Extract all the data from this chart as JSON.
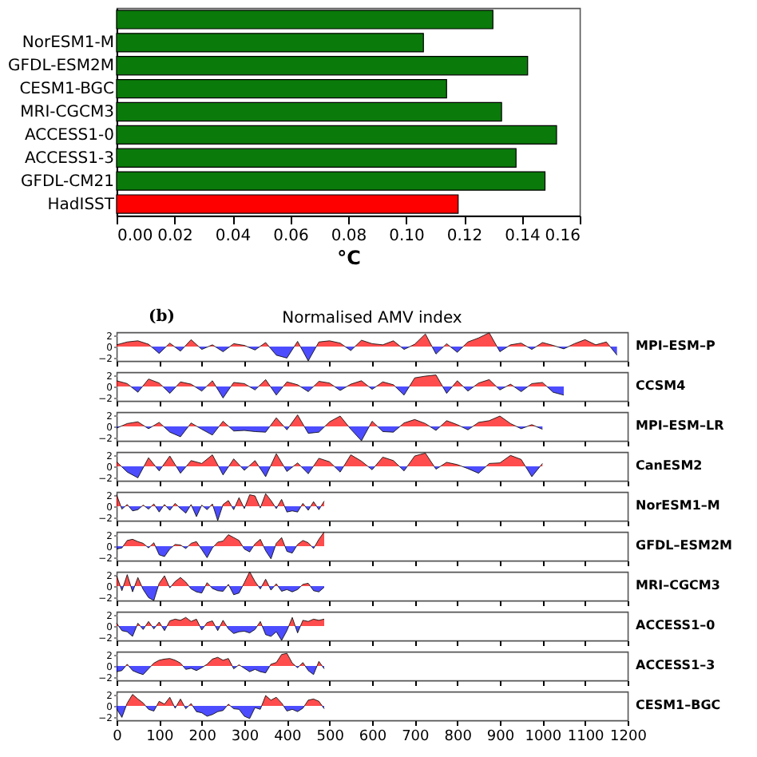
{
  "chart_data": [
    {
      "type": "bar",
      "orientation": "horizontal",
      "categories": [
        null,
        "NorESM1-M",
        "GFDL-ESM2M",
        "CESM1-BGC",
        "MRI-CGCM3",
        "ACCESS1-0",
        "ACCESS1-3",
        "GFDL-CM21",
        "HadISST"
      ],
      "values": [
        0.13,
        0.106,
        0.142,
        0.114,
        0.133,
        0.152,
        0.138,
        0.148,
        0.118
      ],
      "colors": [
        "#0a7a0a",
        "#0a7a0a",
        "#0a7a0a",
        "#0a7a0a",
        "#0a7a0a",
        "#0a7a0a",
        "#0a7a0a",
        "#0a7a0a",
        "#ff0000"
      ],
      "xlim": [
        0,
        0.16
      ],
      "xticks": [
        {
          "value": 0,
          "label": "0.00"
        },
        {
          "value": 0.02,
          "label": "0.02"
        },
        {
          "value": 0.04,
          "label": "0.04"
        },
        {
          "value": 0.06,
          "label": "0.06"
        },
        {
          "value": 0.08,
          "label": "0.08"
        },
        {
          "value": 0.1,
          "label": "0.10"
        },
        {
          "value": 0.12,
          "label": "0.12"
        },
        {
          "value": 0.14,
          "label": "0.14"
        },
        {
          "value": 0.16,
          "label": "0.16"
        }
      ],
      "xlabel": "°C",
      "grid": false
    },
    {
      "type": "area",
      "title": "Normalised AMV index",
      "annotations": [
        "(b)"
      ],
      "colors": [
        "#ff0000",
        "#0000ff"
      ],
      "xlim": [
        0,
        1200
      ],
      "xticks": [
        0,
        100,
        200,
        300,
        400,
        500,
        600,
        700,
        800,
        900,
        1000,
        1100,
        1200
      ],
      "ylim": [
        -2.5,
        2.5
      ],
      "yticks": [
        -2,
        0,
        2
      ],
      "tick_labels": "y",
      "series": [
        {
          "name": "MPI–ESM–P",
          "x": [
            0,
            25,
            50,
            75,
            100,
            125,
            150,
            175,
            200,
            225,
            250,
            275,
            300,
            325,
            350,
            375,
            400,
            425,
            450,
            475,
            500,
            525,
            550,
            575,
            600,
            625,
            650,
            675,
            700,
            725,
            750,
            775,
            800,
            825,
            850,
            875,
            900,
            925,
            950,
            975,
            1000,
            1025,
            1050,
            1075,
            1100,
            1125,
            1150,
            1175
          ],
          "values": [
            0.3,
            0.8,
            1.0,
            0.4,
            -1.2,
            0.6,
            -0.8,
            1.2,
            -0.5,
            0.3,
            -0.9,
            0.5,
            0.2,
            -0.6,
            0.7,
            -1.5,
            -2.0,
            0.9,
            -2.5,
            0.8,
            1.0,
            0.6,
            -0.7,
            1.1,
            0.5,
            0.3,
            1.0,
            -0.5,
            0.4,
            2.2,
            -1.3,
            0.5,
            -1.0,
            0.8,
            1.5,
            2.4,
            -0.9,
            0.3,
            0.6,
            -0.5,
            0.7,
            0.2,
            -0.4,
            0.5,
            1.2,
            0.3,
            0.8,
            -1.5
          ]
        }
      ]
    },
    {
      "type": "area",
      "colors": [
        "#ff0000",
        "#0000ff"
      ],
      "xlim": [
        0,
        1200
      ],
      "xticks": [
        0,
        100,
        200,
        300,
        400,
        500,
        600,
        700,
        800,
        900,
        1000,
        1100,
        1200
      ],
      "ylim": [
        -2.5,
        2.5
      ],
      "yticks": [
        -2,
        0,
        2
      ],
      "tick_labels": "y",
      "series": [
        {
          "name": "CCSM4",
          "x": [
            0,
            25,
            50,
            75,
            100,
            125,
            150,
            175,
            200,
            225,
            250,
            275,
            300,
            325,
            350,
            375,
            400,
            425,
            450,
            475,
            500,
            525,
            550,
            575,
            600,
            625,
            650,
            675,
            700,
            725,
            750,
            775,
            800,
            825,
            850,
            875,
            900,
            925,
            950,
            975,
            1000,
            1025,
            1050
          ],
          "values": [
            1.0,
            0.5,
            -1.0,
            1.3,
            0.6,
            -1.2,
            0.8,
            0.4,
            -0.8,
            1.0,
            -2.0,
            0.7,
            0.5,
            -0.6,
            1.2,
            -1.5,
            0.8,
            0.3,
            -0.9,
            0.9,
            0.6,
            -0.7,
            0.4,
            1.0,
            -0.5,
            0.8,
            0.3,
            -1.5,
            1.5,
            1.8,
            2.0,
            -1.2,
            1.0,
            -0.8,
            0.6,
            1.2,
            -0.6,
            0.4,
            -0.9,
            0.5,
            0.7,
            -1.0,
            -1.5
          ]
        }
      ]
    },
    {
      "type": "area",
      "colors": [
        "#ff0000",
        "#0000ff"
      ],
      "xlim": [
        0,
        1200
      ],
      "xticks": [
        0,
        100,
        200,
        300,
        400,
        500,
        600,
        700,
        800,
        900,
        1000,
        1100,
        1200
      ],
      "ylim": [
        -2.5,
        2.5
      ],
      "yticks": [
        -2,
        0,
        2
      ],
      "tick_labels": "y",
      "series": [
        {
          "name": "MPI–ESM–LR",
          "x": [
            0,
            25,
            50,
            75,
            100,
            125,
            150,
            175,
            200,
            225,
            250,
            275,
            300,
            325,
            350,
            375,
            400,
            425,
            450,
            475,
            500,
            525,
            550,
            575,
            600,
            625,
            650,
            675,
            700,
            725,
            750,
            775,
            800,
            825,
            850,
            875,
            900,
            925,
            950,
            975,
            1000
          ],
          "values": [
            -0.3,
            0.5,
            0.8,
            -0.4,
            0.7,
            -1.0,
            -1.8,
            0.6,
            -0.5,
            -1.5,
            0.9,
            -0.8,
            -0.7,
            -0.9,
            -1.0,
            1.5,
            -0.6,
            2.0,
            -1.2,
            -1.0,
            0.8,
            1.8,
            -0.5,
            -2.5,
            0.9,
            -0.9,
            -1.0,
            0.6,
            1.2,
            0.5,
            -0.7,
            1.0,
            0.3,
            -0.6,
            0.7,
            1.0,
            1.8,
            0.5,
            -0.4,
            0.3,
            -0.5
          ]
        }
      ]
    },
    {
      "type": "area",
      "colors": [
        "#ff0000",
        "#0000ff"
      ],
      "xlim": [
        0,
        1200
      ],
      "xticks": [
        0,
        100,
        200,
        300,
        400,
        500,
        600,
        700,
        800,
        900,
        1000,
        1100,
        1200
      ],
      "ylim": [
        -2.5,
        2.5
      ],
      "yticks": [
        -2,
        0,
        2
      ],
      "tick_labels": "y",
      "series": [
        {
          "name": "CanESM2",
          "x": [
            0,
            25,
            50,
            75,
            100,
            125,
            150,
            175,
            200,
            225,
            250,
            275,
            300,
            325,
            350,
            375,
            400,
            425,
            450,
            475,
            500,
            525,
            550,
            575,
            600,
            625,
            650,
            675,
            700,
            725,
            750,
            775,
            800,
            825,
            850,
            875,
            900,
            925,
            950,
            975,
            1000
          ],
          "values": [
            0.8,
            -1.0,
            -2.0,
            1.5,
            -0.8,
            1.8,
            -1.2,
            1.0,
            0.5,
            2.0,
            -1.5,
            1.3,
            -0.7,
            1.0,
            -1.8,
            2.2,
            -0.9,
            0.6,
            -1.3,
            1.4,
            0.8,
            -1.0,
            2.0,
            0.9,
            -0.6,
            1.6,
            1.0,
            -0.8,
            1.8,
            2.3,
            -0.5,
            0.7,
            0.3,
            -0.4,
            -1.2,
            0.5,
            0.6,
            1.9,
            1.2,
            -1.8,
            0.5
          ]
        }
      ]
    },
    {
      "type": "area",
      "colors": [
        "#ff0000",
        "#0000ff"
      ],
      "xlim": [
        0,
        1200
      ],
      "xticks": [
        0,
        100,
        200,
        300,
        400,
        500,
        600,
        700,
        800,
        900,
        1000,
        1100,
        1200
      ],
      "ylim": [
        -2.5,
        2.5
      ],
      "yticks": [
        -2,
        0,
        2
      ],
      "tick_labels": "y",
      "series": [
        {
          "name": "NorESM1–M",
          "x": [
            0,
            12.5,
            25,
            37.5,
            50,
            62.5,
            75,
            87.5,
            100,
            112.5,
            125,
            137.5,
            150,
            162.5,
            175,
            187.5,
            200,
            212.5,
            225,
            237.5,
            250,
            262.5,
            275,
            287.5,
            300,
            312.5,
            325,
            337.5,
            350,
            362.5,
            375,
            387.5,
            400,
            412.5,
            425,
            437.5,
            450,
            462.5,
            475,
            487.5
          ],
          "values": [
            2.0,
            -0.5,
            0.3,
            -0.8,
            -0.6,
            0.2,
            -0.5,
            0.4,
            -1.0,
            0.3,
            -0.7,
            0.5,
            -0.4,
            -1.2,
            0.3,
            -1.8,
            0.2,
            -0.6,
            0.4,
            -2.5,
            0.3,
            1.0,
            -0.6,
            1.5,
            -0.4,
            2.0,
            1.8,
            -0.3,
            2.2,
            1.0,
            -0.4,
            1.2,
            -1.0,
            -0.8,
            -1.0,
            0.5,
            -0.7,
            0.8,
            -0.6,
            0.9
          ]
        }
      ]
    },
    {
      "type": "area",
      "colors": [
        "#ff0000",
        "#0000ff"
      ],
      "xlim": [
        0,
        1200
      ],
      "xticks": [
        0,
        100,
        200,
        300,
        400,
        500,
        600,
        700,
        800,
        900,
        1000,
        1100,
        1200
      ],
      "ylim": [
        -2.5,
        2.5
      ],
      "yticks": [
        -2,
        0,
        2
      ],
      "tick_labels": "y",
      "series": [
        {
          "name": "GFDL–ESM2M",
          "x": [
            0,
            12.5,
            25,
            37.5,
            50,
            62.5,
            75,
            87.5,
            100,
            112.5,
            125,
            137.5,
            150,
            162.5,
            175,
            187.5,
            200,
            212.5,
            225,
            237.5,
            250,
            262.5,
            275,
            287.5,
            300,
            312.5,
            325,
            337.5,
            350,
            362.5,
            375,
            387.5,
            400,
            412.5,
            425,
            437.5,
            450,
            462.5,
            475,
            487.5
          ],
          "values": [
            -0.5,
            -0.3,
            1.0,
            1.2,
            0.8,
            0.5,
            -0.3,
            0.6,
            -1.5,
            -1.8,
            -0.5,
            0.3,
            0.2,
            -0.4,
            0.5,
            0.8,
            -0.6,
            -2.0,
            -0.3,
            0.7,
            0.9,
            2.0,
            1.5,
            1.0,
            -0.5,
            -1.0,
            0.4,
            1.2,
            -0.8,
            -2.2,
            0.5,
            1.5,
            -0.9,
            -1.2,
            0.3,
            1.0,
            0.6,
            -0.4,
            1.2,
            2.5
          ]
        }
      ]
    },
    {
      "type": "area",
      "colors": [
        "#ff0000",
        "#0000ff"
      ],
      "xlim": [
        0,
        1200
      ],
      "xticks": [
        0,
        100,
        200,
        300,
        400,
        500,
        600,
        700,
        800,
        900,
        1000,
        1100,
        1200
      ],
      "ylim": [
        -2.5,
        2.5
      ],
      "yticks": [
        -2,
        0,
        2
      ],
      "tick_labels": "y",
      "series": [
        {
          "name": "MRI–CGCM3",
          "x": [
            0,
            12.5,
            25,
            37.5,
            50,
            62.5,
            75,
            87.5,
            100,
            112.5,
            125,
            137.5,
            150,
            162.5,
            175,
            187.5,
            200,
            212.5,
            225,
            237.5,
            250,
            262.5,
            275,
            287.5,
            300,
            312.5,
            325,
            337.5,
            350,
            362.5,
            375,
            387.5,
            400,
            412.5,
            425,
            437.5,
            450,
            462.5,
            475,
            487.5
          ],
          "values": [
            1.8,
            -0.8,
            2.0,
            -1.0,
            1.5,
            -0.6,
            -2.0,
            -2.5,
            0.5,
            1.8,
            -0.3,
            0.8,
            1.5,
            0.7,
            -0.5,
            -1.0,
            -1.2,
            0.6,
            -0.4,
            -0.8,
            -0.9,
            0.3,
            -1.5,
            -1.2,
            0.6,
            2.5,
            0.8,
            -0.5,
            1.2,
            -0.7,
            0.4,
            -0.9,
            -0.6,
            -1.0,
            -0.6,
            0.3,
            0.5,
            -0.8,
            -1.0,
            -0.2
          ]
        }
      ]
    },
    {
      "type": "area",
      "colors": [
        "#ff0000",
        "#0000ff"
      ],
      "xlim": [
        0,
        1200
      ],
      "xticks": [
        0,
        100,
        200,
        300,
        400,
        500,
        600,
        700,
        800,
        900,
        1000,
        1100,
        1200
      ],
      "ylim": [
        -2.5,
        2.5
      ],
      "yticks": [
        -2,
        0,
        2
      ],
      "tick_labels": "y",
      "series": [
        {
          "name": "ACCESS1–0",
          "x": [
            0,
            12.5,
            25,
            37.5,
            50,
            62.5,
            75,
            87.5,
            100,
            112.5,
            125,
            137.5,
            150,
            162.5,
            175,
            187.5,
            200,
            212.5,
            225,
            237.5,
            250,
            262.5,
            275,
            287.5,
            300,
            312.5,
            325,
            337.5,
            350,
            362.5,
            375,
            387.5,
            400,
            412.5,
            425,
            437.5,
            450,
            462.5,
            475,
            487.5
          ],
          "values": [
            0.5,
            -0.8,
            -1.0,
            -1.8,
            0.5,
            -0.6,
            0.8,
            -0.5,
            0.7,
            -0.8,
            0.9,
            1.2,
            1.0,
            1.5,
            0.8,
            1.2,
            -0.7,
            0.6,
            0.9,
            -0.8,
            1.0,
            -0.5,
            -1.3,
            -1.0,
            -0.9,
            -1.2,
            -0.6,
            0.8,
            -1.5,
            -1.8,
            -1.0,
            -2.5,
            -0.8,
            1.5,
            -1.2,
            1.0,
            0.8,
            1.2,
            1.0,
            1.2
          ]
        }
      ]
    },
    {
      "type": "area",
      "colors": [
        "#ff0000",
        "#0000ff"
      ],
      "xlim": [
        0,
        1200
      ],
      "xticks": [
        0,
        100,
        200,
        300,
        400,
        500,
        600,
        700,
        800,
        900,
        1000,
        1100,
        1200
      ],
      "ylim": [
        -2.5,
        2.5
      ],
      "yticks": [
        -2,
        0,
        2
      ],
      "tick_labels": "y",
      "series": [
        {
          "name": "ACCESS1–3",
          "x": [
            0,
            12.5,
            25,
            37.5,
            50,
            62.5,
            75,
            87.5,
            100,
            112.5,
            125,
            137.5,
            150,
            162.5,
            175,
            187.5,
            200,
            212.5,
            225,
            237.5,
            250,
            262.5,
            275,
            287.5,
            300,
            312.5,
            325,
            337.5,
            350,
            362.5,
            375,
            387.5,
            400,
            412.5,
            425,
            437.5,
            450,
            462.5,
            475,
            487.5
          ],
          "values": [
            -1.0,
            -0.8,
            0.3,
            -0.8,
            -1.2,
            -1.5,
            -0.5,
            0.5,
            1.0,
            1.2,
            1.3,
            1.0,
            0.5,
            -0.6,
            -0.4,
            -0.8,
            -0.3,
            0.3,
            1.2,
            1.5,
            1.0,
            1.3,
            -0.5,
            0.2,
            -0.4,
            -1.0,
            -0.6,
            -1.0,
            -1.2,
            0.3,
            0.6,
            2.0,
            2.2,
            0.5,
            -0.3,
            0.6,
            -0.8,
            -1.5,
            0.8,
            -0.5
          ]
        }
      ]
    },
    {
      "type": "area",
      "colors": [
        "#ff0000",
        "#0000ff"
      ],
      "xlim": [
        0,
        1200
      ],
      "xticks": [
        0,
        100,
        200,
        300,
        400,
        500,
        600,
        700,
        800,
        900,
        1000,
        1100,
        1200
      ],
      "ylim": [
        -2.5,
        2.5
      ],
      "yticks": [
        -2,
        0,
        2
      ],
      "series": [
        {
          "name": "CESM1–BGC",
          "x": [
            0,
            12.5,
            25,
            37.5,
            50,
            62.5,
            75,
            87.5,
            100,
            112.5,
            125,
            137.5,
            150,
            162.5,
            175,
            187.5,
            200,
            212.5,
            225,
            237.5,
            250,
            262.5,
            275,
            287.5,
            300,
            312.5,
            325,
            337.5,
            350,
            362.5,
            375,
            387.5,
            400,
            412.5,
            425,
            437.5,
            450,
            462.5,
            475,
            487.5
          ],
          "values": [
            -0.5,
            -2.0,
            0.5,
            2.0,
            1.2,
            0.5,
            -0.6,
            -0.9,
            0.8,
            0.3,
            1.5,
            -0.4,
            1.2,
            -0.5,
            0.4,
            -1.0,
            -1.2,
            -1.8,
            -1.5,
            -1.0,
            -0.8,
            0.3,
            -0.5,
            -0.6,
            -1.8,
            -2.2,
            -0.3,
            -0.6,
            1.8,
            1.0,
            1.5,
            0.5,
            -0.9,
            -0.6,
            -1.0,
            -0.4,
            1.0,
            1.2,
            0.8,
            -0.5
          ]
        }
      ]
    }
  ]
}
